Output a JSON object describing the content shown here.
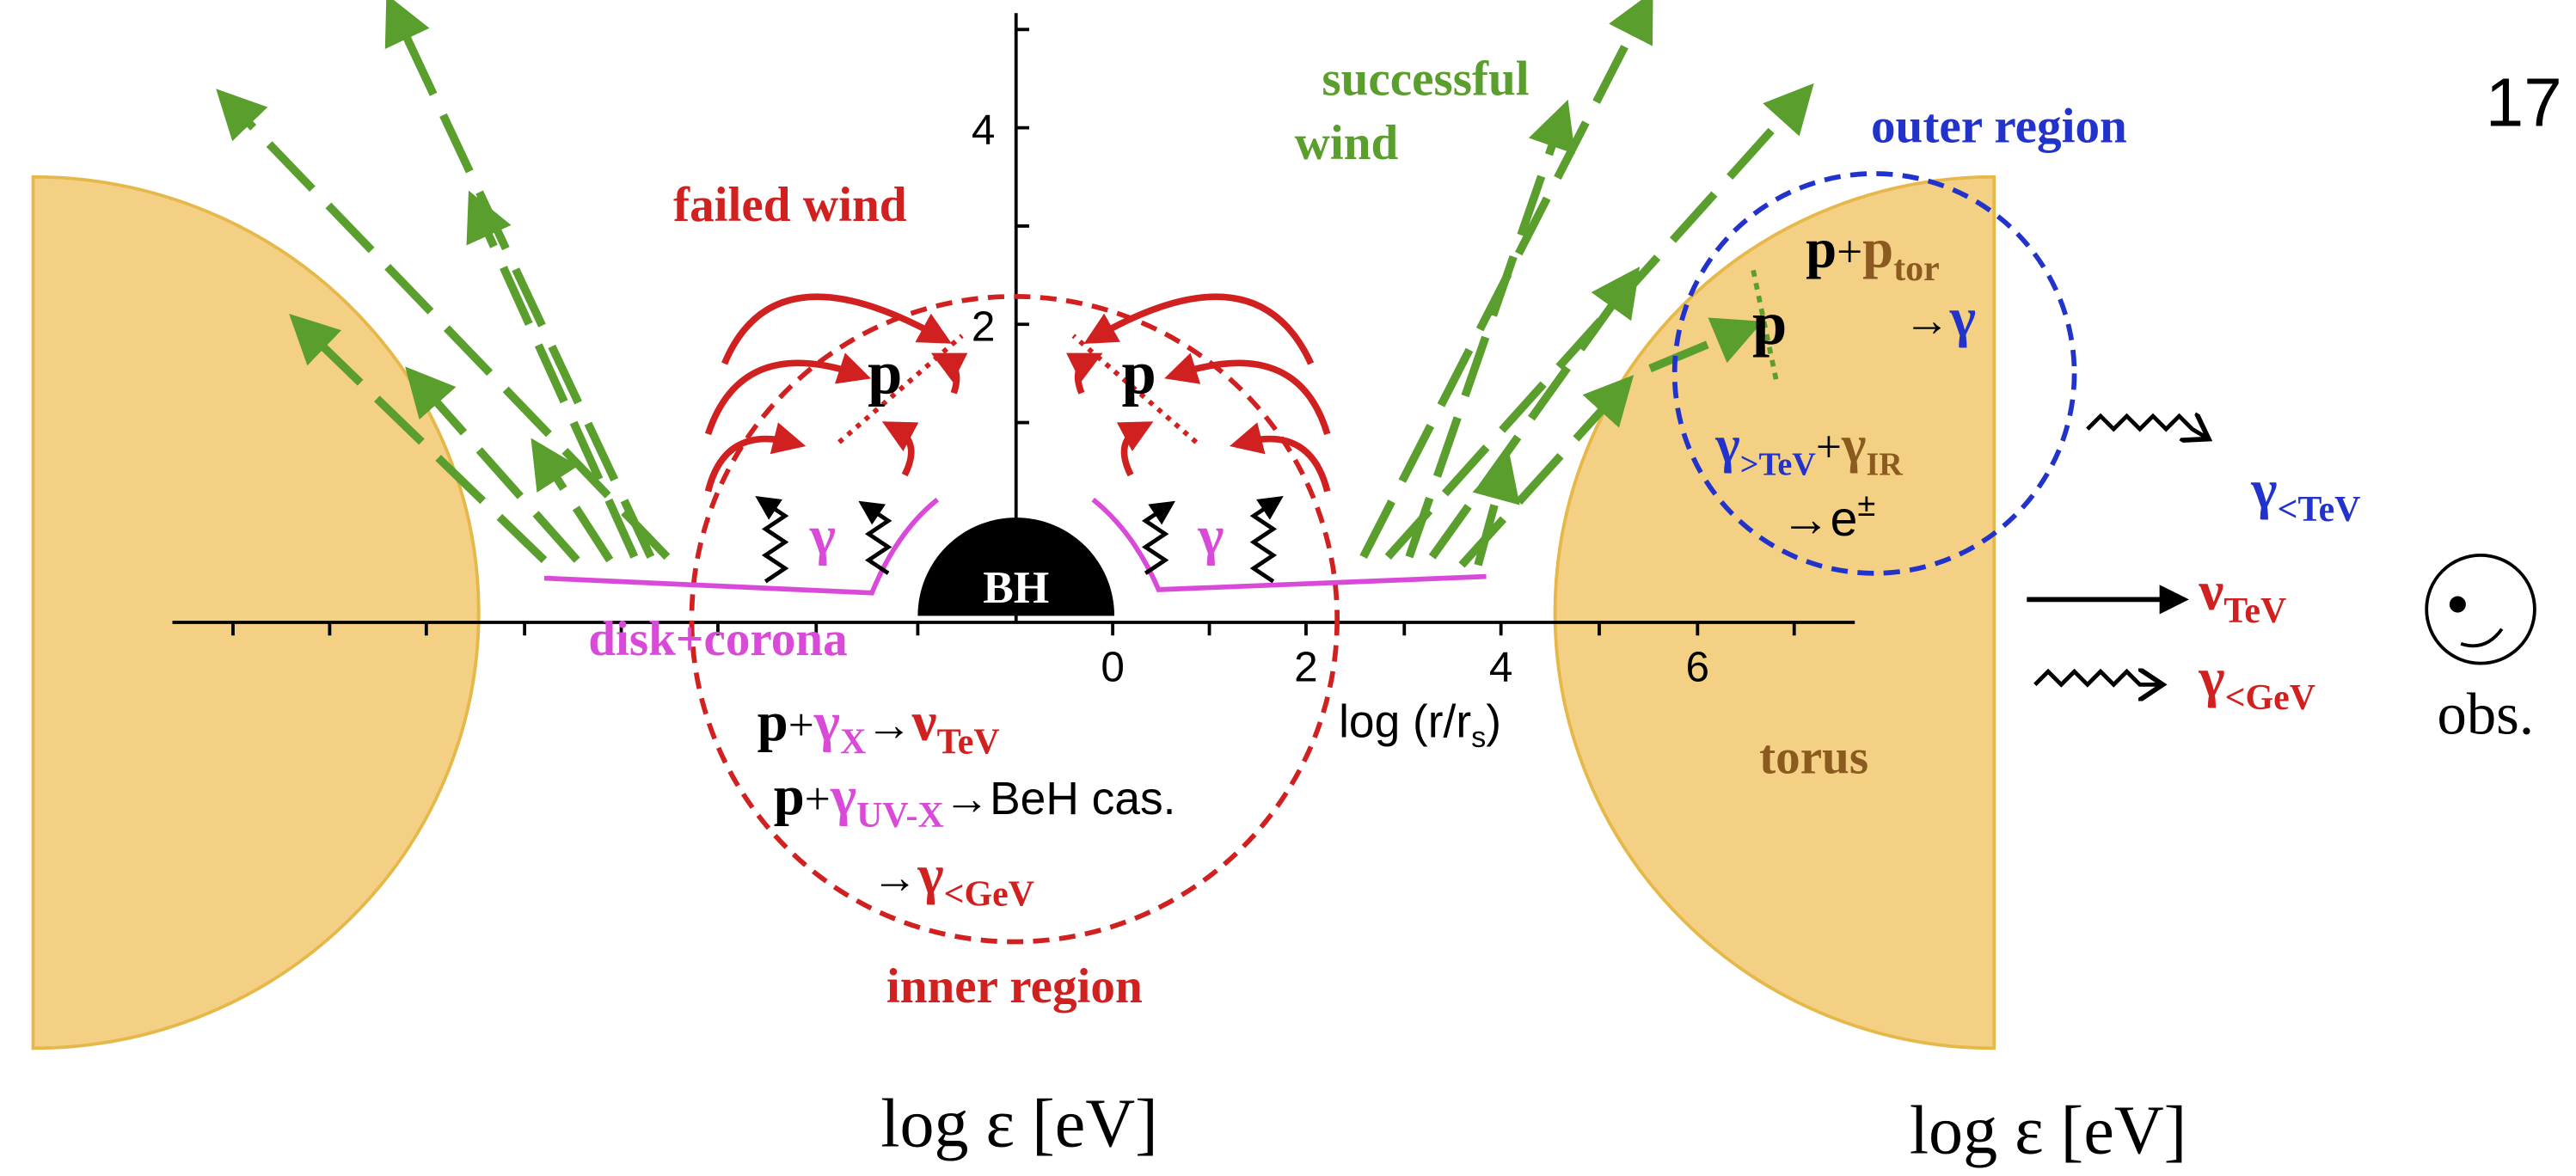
{
  "page_number": "17",
  "labels": {
    "successful_wind": [
      "successful",
      "wind"
    ],
    "failed_wind": "failed wind",
    "outer_region": "outer region",
    "inner_region": "inner region",
    "disk_corona": "disk+corona",
    "bh": "BH",
    "torus": "torus",
    "obs": "obs.",
    "p_left": "p",
    "p_right": "p",
    "p_outer": "p",
    "gamma_left": "γ",
    "gamma_right": "γ"
  },
  "axes": {
    "y_ticks": [
      "4",
      "2"
    ],
    "x_ticks": [
      "0",
      "2",
      "4",
      "6"
    ],
    "x_label": [
      "log (r/r",
      "s",
      ")"
    ]
  },
  "inner_reactions": [
    [
      "p",
      "+",
      "γ",
      "X",
      "→",
      "ν",
      "TeV"
    ],
    [
      "p",
      "+",
      "γ",
      "UV-X",
      "→BeH cas."
    ],
    [
      "→",
      "γ",
      "<GeV"
    ]
  ],
  "outer_reactions": [
    [
      "p",
      "+",
      "p",
      "tor"
    ],
    [
      "→",
      "γ"
    ],
    [
      "γ",
      ">TeV",
      "+",
      "γ",
      "IR"
    ],
    [
      "→e",
      "±"
    ]
  ],
  "outputs": [
    [
      "γ",
      "<TeV"
    ],
    [
      "ν",
      "TeV"
    ],
    [
      "γ",
      "<GeV"
    ]
  ],
  "bottom_labels": [
    "log ε [eV]",
    "log ε [eV]"
  ]
}
